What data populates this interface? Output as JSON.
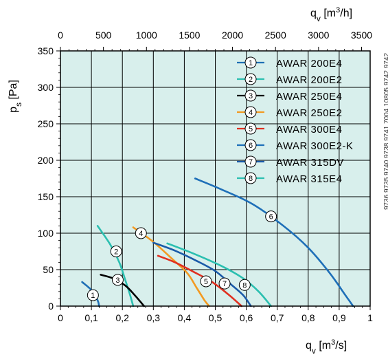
{
  "chart_data": {
    "type": "line",
    "bottom_axis": {
      "label_main": "q",
      "label_sub": "v",
      "label_unit_pre": " [m",
      "label_unit_sup": "3",
      "label_unit_post": "/s]",
      "ticks": [
        "0",
        "0,1",
        "0,2",
        "0,3",
        "0,4",
        "0,5",
        "0,6",
        "0,7",
        "0,8",
        "0,9",
        "1"
      ],
      "range": [
        0,
        1
      ]
    },
    "top_axis": {
      "label_main": "q",
      "label_sub": "v",
      "label_unit_pre": " [m",
      "label_unit_sup": "3",
      "label_unit_post": "/h]",
      "ticks": [
        "0",
        "500",
        "1000",
        "1500",
        "2000",
        "2500",
        "3000",
        "3500"
      ],
      "range": [
        0,
        3600
      ]
    },
    "left_axis": {
      "label_main": "p",
      "label_sub": "s",
      "label_unit": " [Pa]",
      "ticks": [
        "0",
        "50",
        "100",
        "150",
        "200",
        "250",
        "300",
        "350"
      ],
      "range": [
        0,
        350
      ]
    },
    "grid": true,
    "legend_position": "top-right",
    "series": [
      {
        "id": "1",
        "name": "AWAR 200E4",
        "color": "#1f6fb5",
        "points": [
          [
            0.07,
            33
          ],
          [
            0.1,
            22
          ],
          [
            0.12,
            8
          ],
          [
            0.125,
            0
          ]
        ],
        "label_at": [
          0.105,
          15
        ]
      },
      {
        "id": "2",
        "name": "AWAR 200E2",
        "color": "#2bbfb0",
        "points": [
          [
            0.12,
            110
          ],
          [
            0.16,
            85
          ],
          [
            0.19,
            60
          ],
          [
            0.21,
            35
          ],
          [
            0.225,
            15
          ],
          [
            0.235,
            0
          ]
        ],
        "label_at": [
          0.18,
          75
        ]
      },
      {
        "id": "3",
        "name": "AWAR 250E4",
        "color": "#000000",
        "points": [
          [
            0.13,
            43
          ],
          [
            0.17,
            38
          ],
          [
            0.21,
            28
          ],
          [
            0.24,
            15
          ],
          [
            0.27,
            0
          ]
        ],
        "label_at": [
          0.185,
          36
        ]
      },
      {
        "id": "4",
        "name": "AWAR 250E2",
        "color": "#f39a21",
        "points": [
          [
            0.235,
            108
          ],
          [
            0.3,
            88
          ],
          [
            0.36,
            65
          ],
          [
            0.41,
            45
          ],
          [
            0.44,
            25
          ],
          [
            0.465,
            8
          ],
          [
            0.48,
            0
          ]
        ],
        "label_at": [
          0.26,
          100
        ]
      },
      {
        "id": "5",
        "name": "AWAR 300E4",
        "color": "#e03020",
        "points": [
          [
            0.315,
            69
          ],
          [
            0.37,
            60
          ],
          [
            0.43,
            47
          ],
          [
            0.49,
            33
          ],
          [
            0.545,
            15
          ],
          [
            0.585,
            0
          ]
        ],
        "label_at": [
          0.47,
          34
        ]
      },
      {
        "id": "6",
        "name": "AWAR 300E2-K",
        "color": "#1e6fb8",
        "points": [
          [
            0.435,
            175
          ],
          [
            0.52,
            160
          ],
          [
            0.62,
            140
          ],
          [
            0.72,
            110
          ],
          [
            0.8,
            80
          ],
          [
            0.87,
            45
          ],
          [
            0.92,
            15
          ],
          [
            0.945,
            0
          ]
        ],
        "label_at": [
          0.68,
          123
        ]
      },
      {
        "id": "7",
        "name": "AWAR 315DV",
        "color": "#1a5aa8",
        "points": [
          [
            0.3,
            87
          ],
          [
            0.37,
            76
          ],
          [
            0.44,
            62
          ],
          [
            0.5,
            48
          ],
          [
            0.55,
            30
          ],
          [
            0.59,
            15
          ],
          [
            0.615,
            0
          ]
        ],
        "label_at": [
          0.53,
          31
        ]
      },
      {
        "id": "8",
        "name": "AWAR 315E4",
        "color": "#2bbfb0",
        "points": [
          [
            0.345,
            86
          ],
          [
            0.43,
            72
          ],
          [
            0.52,
            55
          ],
          [
            0.59,
            38
          ],
          [
            0.64,
            20
          ],
          [
            0.68,
            0
          ]
        ],
        "label_at": [
          0.595,
          29
        ]
      }
    ]
  },
  "side_codes": "9736 9735 9740 9738 9741 7004 10805 9742 9742"
}
